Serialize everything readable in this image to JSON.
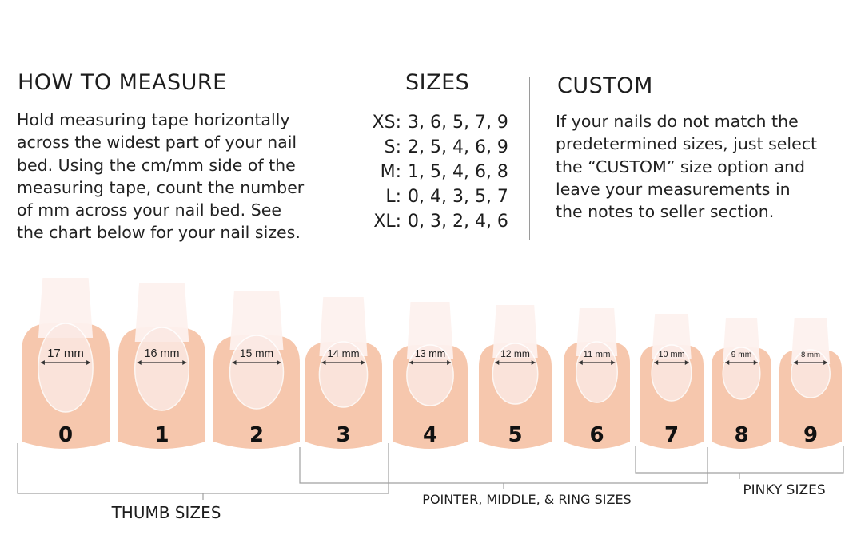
{
  "how_to_measure": {
    "title": "HOW TO MEASURE",
    "lines": [
      "Hold measuring tape horizontally",
      "across the widest part of your nail",
      "bed. Using the cm/mm side of the",
      "measuring tape, count the number",
      "of mm across your nail bed. See",
      "the chart below for your nail sizes."
    ]
  },
  "sizes": {
    "title": "SIZES",
    "rows": [
      {
        "label": "XS:",
        "values": "3, 6, 5, 7, 9"
      },
      {
        "label": "S:",
        "values": "2, 5, 4, 6, 9"
      },
      {
        "label": "M:",
        "values": "1, 5, 4, 6, 8"
      },
      {
        "label": "L:",
        "values": "0, 4, 3, 5, 7"
      },
      {
        "label": "XL:",
        "values": "0, 3, 2, 4, 6"
      }
    ]
  },
  "custom": {
    "title": "CUSTOM",
    "lines": [
      "If your nails do not match the",
      "predetermined sizes, just select",
      "the “CUSTOM” size option and",
      "leave your measurements in",
      "the notes to seller section."
    ]
  },
  "nails": [
    {
      "size": "0",
      "width": "17 mm"
    },
    {
      "size": "1",
      "width": "16 mm"
    },
    {
      "size": "2",
      "width": "15 mm"
    },
    {
      "size": "3",
      "width": "14 mm"
    },
    {
      "size": "4",
      "width": "13 mm"
    },
    {
      "size": "5",
      "width": "12 mm"
    },
    {
      "size": "6",
      "width": "11 mm"
    },
    {
      "size": "7",
      "width": "10 mm"
    },
    {
      "size": "8",
      "width": "9 mm"
    },
    {
      "size": "9",
      "width": "8 mm"
    }
  ],
  "groups": {
    "thumb": "THUMB SIZES",
    "pointer": "POINTER, MIDDLE, & RING SIZES",
    "pinky": "PINKY SIZES"
  },
  "colors": {
    "skin": "#f6c7ad",
    "nail": "#fbe9e3",
    "bracket": "#a0a0a0"
  }
}
